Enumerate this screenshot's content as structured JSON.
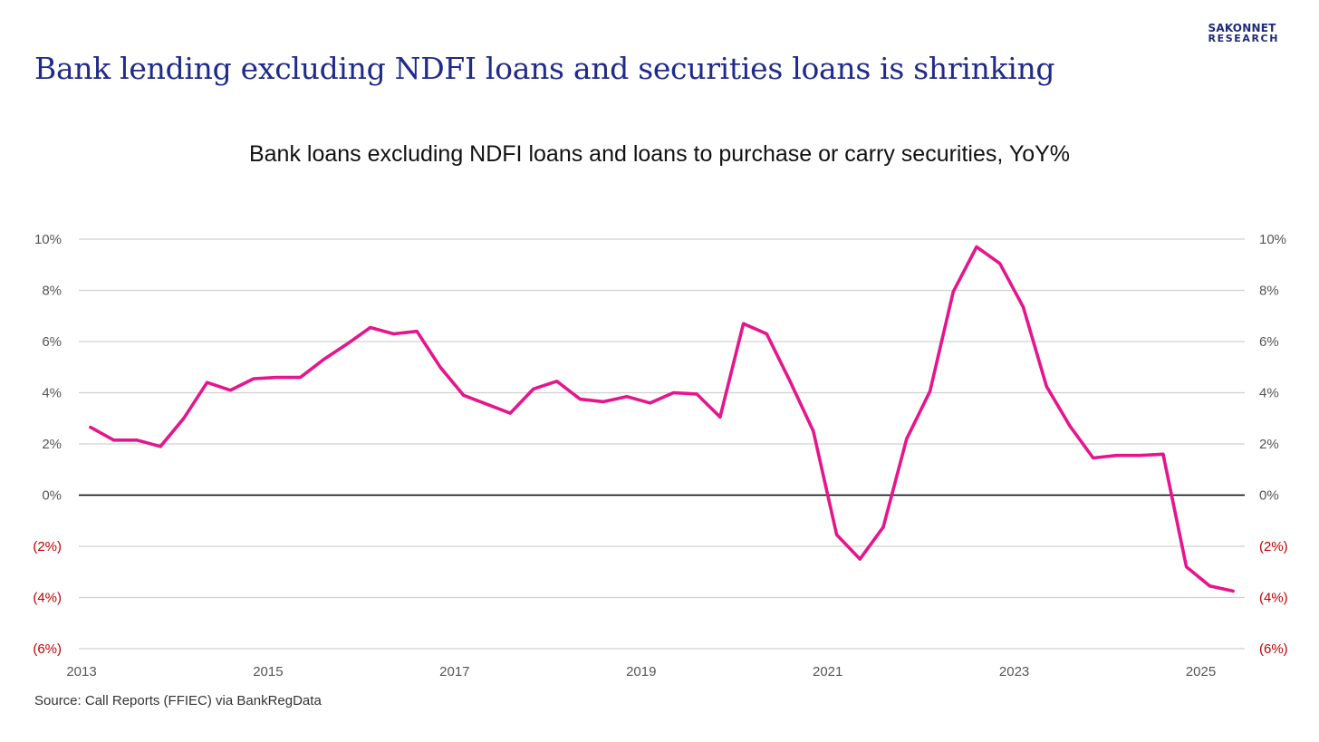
{
  "logo": {
    "line1": "SAKONNET",
    "line2": "RESEARCH"
  },
  "slide_title": "Bank lending excluding NDFI loans and securities loans is shrinking",
  "source": "Source: Call Reports (FFIEC) via BankRegData",
  "colors": {
    "title": "#1f2a8a",
    "line": "#e6158c",
    "negative_label": "#c00000",
    "grid": "#d0d0d0",
    "zero_line": "#000000"
  },
  "chart_data": {
    "type": "line",
    "title": "Bank loans excluding NDFI loans and loans to purchase or carry securities, YoY%",
    "xlabel": "",
    "ylabel": "",
    "ylim": [
      -6,
      10
    ],
    "y_ticks": [
      10,
      8,
      6,
      4,
      2,
      0,
      -2,
      -4,
      -6
    ],
    "y_tick_labels": [
      "10%",
      "8%",
      "6%",
      "4%",
      "2%",
      "0%",
      "(2%)",
      "(4%)",
      "(6%)"
    ],
    "secondary_y_axis": true,
    "grid": true,
    "legend": "none",
    "x_ticks": [
      2013,
      2015,
      2017,
      2019,
      2021,
      2023,
      2025
    ],
    "x_tick_labels": [
      "2013",
      "2015",
      "2017",
      "2019",
      "2021",
      "2023",
      "2025"
    ],
    "series": [
      {
        "x": [
          "2013Q1",
          "2013Q2",
          "2013Q3",
          "2013Q4",
          "2014Q1",
          "2014Q2",
          "2014Q3",
          "2014Q4",
          "2015Q1",
          "2015Q2",
          "2015Q3",
          "2015Q4",
          "2016Q1",
          "2016Q2",
          "2016Q3",
          "2016Q4",
          "2017Q1",
          "2017Q2",
          "2017Q3",
          "2017Q4",
          "2018Q1",
          "2018Q2",
          "2018Q3",
          "2018Q4",
          "2019Q1",
          "2019Q2",
          "2019Q3",
          "2019Q4",
          "2020Q1",
          "2020Q2",
          "2020Q3",
          "2020Q4",
          "2021Q1",
          "2021Q2",
          "2021Q3",
          "2021Q4",
          "2022Q1",
          "2022Q2",
          "2022Q3",
          "2022Q4",
          "2023Q1",
          "2023Q2",
          "2023Q3",
          "2023Q4",
          "2024Q1",
          "2024Q2",
          "2024Q3",
          "2024Q4",
          "2025Q1",
          "2025Q2"
        ],
        "values": [
          2.65,
          2.15,
          2.15,
          1.9,
          3.0,
          4.4,
          4.1,
          4.55,
          4.6,
          4.6,
          5.3,
          5.9,
          6.55,
          6.3,
          6.4,
          5.0,
          3.9,
          3.55,
          3.2,
          4.15,
          4.45,
          3.75,
          3.65,
          3.85,
          3.6,
          4.0,
          3.95,
          3.05,
          6.7,
          6.3,
          4.45,
          2.5,
          -1.55,
          -2.5,
          -1.25,
          2.2,
          4.05,
          7.95,
          9.7,
          9.05,
          7.35,
          4.25,
          2.7,
          1.45,
          1.55,
          1.55,
          1.6,
          -2.8,
          -3.55,
          -3.75
        ]
      }
    ]
  }
}
